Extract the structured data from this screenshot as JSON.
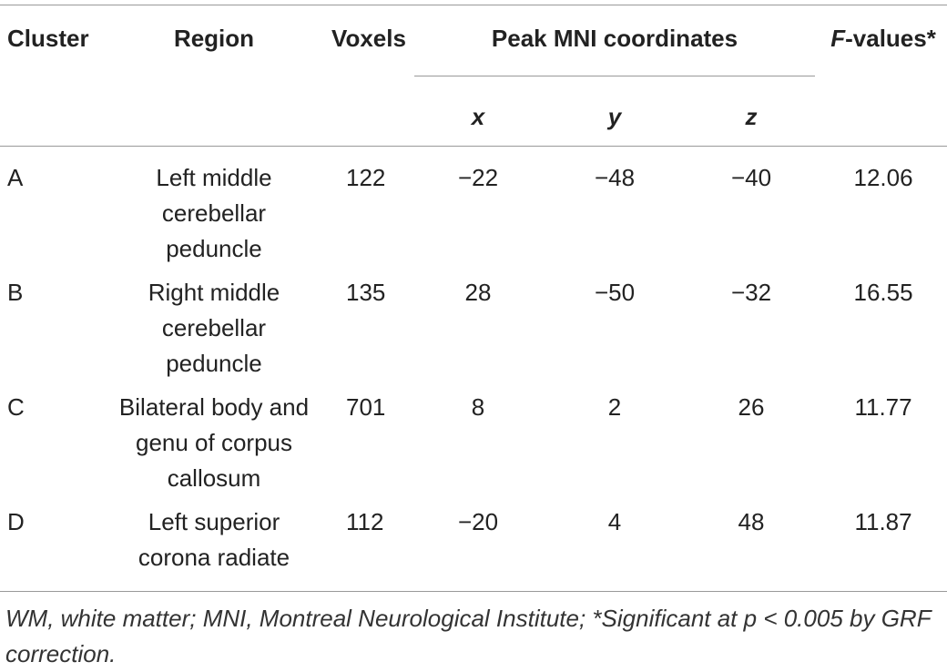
{
  "table": {
    "header": {
      "cluster": "Cluster",
      "region": "Region",
      "voxels": "Voxels",
      "peak": "Peak MNI coordinates",
      "fvalues": {
        "italic": "F",
        "rest": "-values*"
      },
      "x": "x",
      "y": "y",
      "z": "z"
    },
    "rows": [
      [
        "A",
        "Left middle cerebellar peduncle",
        "122",
        "−22",
        "−48",
        "−40",
        "12.06"
      ],
      [
        "B",
        "Right middle cerebellar peduncle",
        "135",
        "28",
        "−50",
        "−32",
        "16.55"
      ],
      [
        "C",
        "Bilateral body and genu of corpus callosum",
        "701",
        "8",
        "2",
        "26",
        "11.77"
      ],
      [
        "D",
        "Left superior corona radiate",
        "112",
        "−20",
        "4",
        "48",
        "11.87"
      ]
    ],
    "footnote": "WM, white matter; MNI, Montreal Neurological Institute; *Significant at p < 0.005 by GRF correction."
  }
}
